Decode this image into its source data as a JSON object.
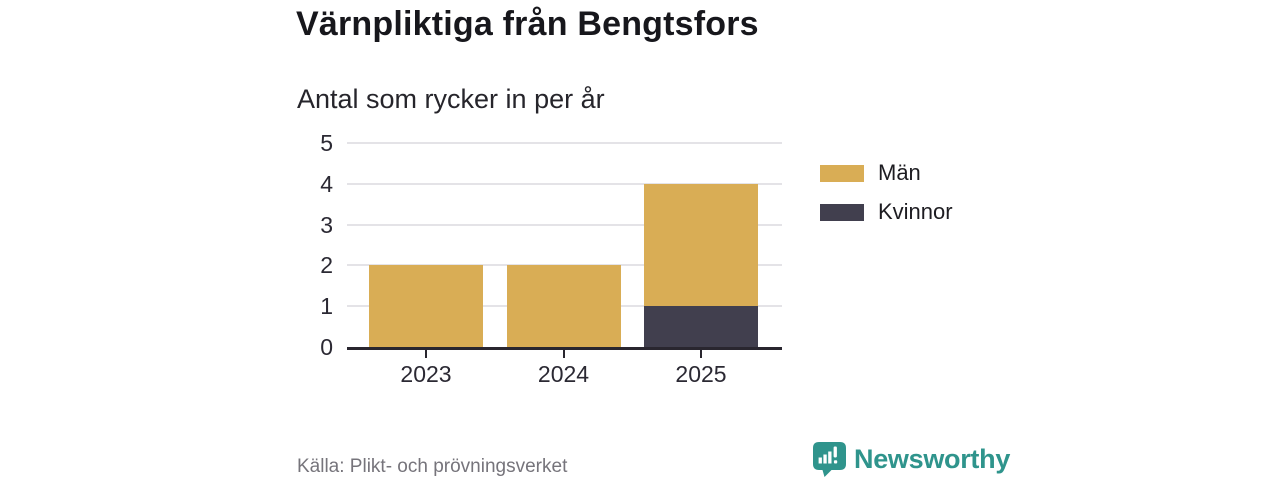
{
  "chart_data": {
    "type": "bar",
    "stacked": true,
    "title": "Värnpliktiga från Bengtsfors",
    "subtitle": "Antal som rycker in per år",
    "categories": [
      "2023",
      "2024",
      "2025"
    ],
    "series": [
      {
        "name": "Män",
        "color": "#d9ad55",
        "values": [
          2,
          2,
          3
        ]
      },
      {
        "name": "Kvinnor",
        "color": "#413f4e",
        "values": [
          0,
          0,
          1
        ]
      }
    ],
    "stack_bottom_to_top": [
      "Kvinnor",
      "Män"
    ],
    "totals": [
      2,
      2,
      4
    ],
    "xlabel": "",
    "ylabel": "",
    "ylim": [
      0,
      5
    ],
    "yticks": [
      0,
      1,
      2,
      3,
      4,
      5
    ],
    "grid": true,
    "legend_position": "right"
  },
  "source": "Källa: Plikt- och prövningsverket",
  "brand": {
    "name": "Newsworthy",
    "color": "#2f948c"
  },
  "colors": {
    "men_gold": "#d9ad55",
    "women_dark": "#413f4e",
    "gridline": "#e4e3e7",
    "axis_line": "#29262f",
    "title_text": "#17171c",
    "tick_text": "#2b2933",
    "source_text": "#76747b",
    "brand_teal": "#2f948c",
    "background": "#ffffff"
  }
}
